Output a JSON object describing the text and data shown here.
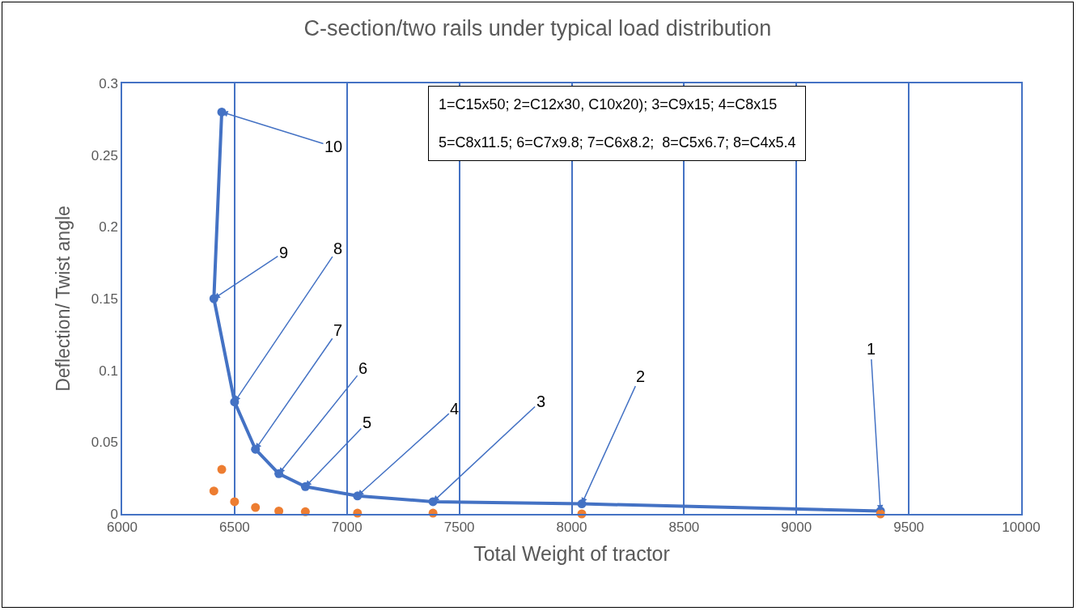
{
  "chart_data": {
    "type": "line",
    "title": "C-section/two rails under typical load distribution",
    "xlabel": "Total Weight of tractor",
    "ylabel": "Deflection/ Twist angle",
    "x": [
      6443,
      6408,
      6500,
      6593,
      6697,
      6815,
      7047,
      7383,
      8045,
      9374
    ],
    "series": [
      {
        "color": "#4472c4",
        "values": [
          0.28,
          0.15,
          0.078,
          0.045,
          0.028,
          0.019,
          0.0125,
          0.0085,
          0.007,
          0.002
        ],
        "marker": "circle",
        "line_style": "solid"
      },
      {
        "type": "scatter",
        "color": "#ed7d31",
        "values": [
          0.031,
          0.016,
          0.0085,
          0.0045,
          0.002,
          0.0015,
          0.0005,
          0.0005,
          0,
          0
        ],
        "marker": "circle"
      }
    ],
    "xlim": [
      6000,
      10000
    ],
    "xticks": [
      6000,
      6500,
      7000,
      7500,
      8000,
      8500,
      9000,
      9500,
      10000
    ],
    "ylim": [
      0,
      0.3
    ],
    "yticks": [
      0,
      0.05,
      0.1,
      0.15,
      0.2,
      0.25,
      0.3
    ],
    "grid": "x",
    "annotations": [
      {
        "text": "10",
        "x": 6443,
        "y": 0.28
      },
      {
        "text": "9",
        "x": 6408,
        "y": 0.15
      },
      {
        "text": "8",
        "x": 6500,
        "y": 0.078
      },
      {
        "text": "7",
        "x": 6593,
        "y": 0.045
      },
      {
        "text": "6",
        "x": 6697,
        "y": 0.028
      },
      {
        "text": "5",
        "x": 6815,
        "y": 0.019
      },
      {
        "text": "4",
        "x": 7047,
        "y": 0.0125
      },
      {
        "text": "3",
        "x": 7383,
        "y": 0.0085
      },
      {
        "text": "2",
        "x": 8045,
        "y": 0.007
      },
      {
        "text": "1",
        "x": 9374,
        "y": 0.002
      },
      "1=C15x50; 2=C12x30, C10x20); 3=C9x15; 4=C8x15",
      "5=C8x11.5; 6=C7x9.8; 7=C6x8.2;  8=C5x6.7; 8=C4x5.4"
    ]
  }
}
